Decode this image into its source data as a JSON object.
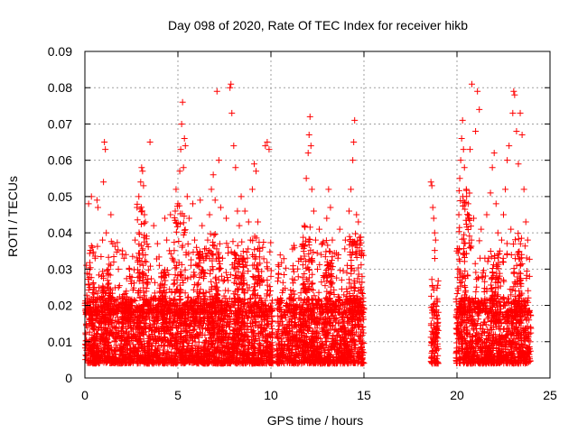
{
  "chart_data": {
    "type": "scatter",
    "title": "Day 098 of 2020, Rate Of TEC Index for receiver hikb",
    "xlabel": "GPS time / hours",
    "ylabel": "ROTI / TECUs",
    "xlim": [
      0,
      25
    ],
    "ylim": [
      0,
      0.09
    ],
    "xticks": [
      0,
      5,
      10,
      15,
      20,
      25
    ],
    "yticks": [
      0,
      0.01,
      0.02,
      0.03,
      0.04,
      0.05,
      0.06,
      0.07,
      0.08,
      0.09
    ],
    "xtick_labels": [
      "0",
      "5",
      "10",
      "15",
      "20",
      "25"
    ],
    "ytick_labels": [
      "0",
      "0.01",
      "0.02",
      "0.03",
      "0.04",
      "0.05",
      "0.06",
      "0.07",
      "0.08",
      "0.09"
    ],
    "grid": true,
    "marker": "+",
    "color": "#ff0000",
    "series": [
      {
        "points": [
          [
            0.05,
            0.012
          ],
          [
            0.1,
            0.009
          ],
          [
            0.15,
            0.02
          ],
          [
            0.2,
            0.048
          ],
          [
            0.25,
            0.03
          ],
          [
            0.3,
            0.015
          ],
          [
            0.35,
            0.05
          ],
          [
            0.4,
            0.036
          ],
          [
            0.45,
            0.011
          ],
          [
            0.5,
            0.025
          ],
          [
            0.55,
            0.033
          ],
          [
            0.6,
            0.008
          ],
          [
            0.65,
            0.049
          ],
          [
            0.7,
            0.047
          ],
          [
            0.75,
            0.014
          ],
          [
            0.8,
            0.022
          ],
          [
            0.85,
            0.01
          ],
          [
            0.9,
            0.028
          ],
          [
            0.95,
            0.038
          ],
          [
            1.0,
            0.054
          ],
          [
            1.05,
            0.065
          ],
          [
            1.1,
            0.063
          ],
          [
            1.15,
            0.04
          ],
          [
            1.2,
            0.013
          ],
          [
            1.3,
            0.016
          ],
          [
            1.4,
            0.045
          ],
          [
            1.5,
            0.037
          ],
          [
            1.6,
            0.01
          ],
          [
            1.7,
            0.012
          ],
          [
            1.8,
            0.03
          ],
          [
            1.9,
            0.011
          ],
          [
            2.0,
            0.022
          ],
          [
            2.1,
            0.033
          ],
          [
            2.2,
            0.034
          ],
          [
            2.3,
            0.009
          ],
          [
            2.4,
            0.028
          ],
          [
            2.5,
            0.026
          ],
          [
            2.6,
            0.012
          ],
          [
            2.7,
            0.038
          ],
          [
            2.8,
            0.047
          ],
          [
            2.9,
            0.05
          ],
          [
            3.0,
            0.054
          ],
          [
            3.05,
            0.058
          ],
          [
            3.1,
            0.057
          ],
          [
            3.15,
            0.053
          ],
          [
            3.2,
            0.045
          ],
          [
            3.25,
            0.043
          ],
          [
            3.3,
            0.032
          ],
          [
            3.4,
            0.02
          ],
          [
            3.5,
            0.065
          ],
          [
            3.6,
            0.013
          ],
          [
            3.7,
            0.042
          ],
          [
            3.8,
            0.019
          ],
          [
            3.9,
            0.037
          ],
          [
            4.0,
            0.031
          ],
          [
            4.1,
            0.009
          ],
          [
            4.2,
            0.022
          ],
          [
            4.3,
            0.044
          ],
          [
            4.4,
            0.038
          ],
          [
            4.5,
            0.014
          ],
          [
            4.6,
            0.045
          ],
          [
            4.7,
            0.033
          ],
          [
            4.8,
            0.027
          ],
          [
            4.9,
            0.052
          ],
          [
            5.0,
            0.048
          ],
          [
            5.1,
            0.057
          ],
          [
            5.15,
            0.063
          ],
          [
            5.2,
            0.07
          ],
          [
            5.25,
            0.076
          ],
          [
            5.3,
            0.058
          ],
          [
            5.35,
            0.066
          ],
          [
            5.4,
            0.064
          ],
          [
            5.5,
            0.05
          ],
          [
            5.6,
            0.044
          ],
          [
            5.7,
            0.031
          ],
          [
            5.8,
            0.048
          ],
          [
            5.9,
            0.038
          ],
          [
            6.0,
            0.036
          ],
          [
            6.1,
            0.02
          ],
          [
            6.2,
            0.049
          ],
          [
            6.3,
            0.042
          ],
          [
            6.4,
            0.028
          ],
          [
            6.5,
            0.033
          ],
          [
            6.6,
            0.038
          ],
          [
            6.7,
            0.045
          ],
          [
            6.8,
            0.052
          ],
          [
            6.9,
            0.056
          ],
          [
            7.0,
            0.049
          ],
          [
            7.1,
            0.079
          ],
          [
            7.2,
            0.06
          ],
          [
            7.3,
            0.047
          ],
          [
            7.4,
            0.033
          ],
          [
            7.5,
            0.027
          ],
          [
            7.6,
            0.044
          ],
          [
            7.7,
            0.036
          ],
          [
            7.8,
            0.08
          ],
          [
            7.85,
            0.081
          ],
          [
            7.9,
            0.073
          ],
          [
            8.0,
            0.064
          ],
          [
            8.1,
            0.058
          ],
          [
            8.2,
            0.046
          ],
          [
            8.3,
            0.042
          ],
          [
            8.4,
            0.05
          ],
          [
            8.5,
            0.033
          ],
          [
            8.6,
            0.046
          ],
          [
            8.7,
            0.031
          ],
          [
            8.8,
            0.043
          ],
          [
            8.9,
            0.038
          ],
          [
            9.0,
            0.052
          ],
          [
            9.1,
            0.059
          ],
          [
            9.2,
            0.057
          ],
          [
            9.3,
            0.043
          ],
          [
            9.4,
            0.035
          ],
          [
            9.5,
            0.014
          ],
          [
            9.6,
            0.027
          ],
          [
            9.7,
            0.064
          ],
          [
            9.8,
            0.065
          ],
          [
            9.9,
            0.063
          ],
          [
            10.0,
            0.028
          ],
          [
            10.1,
            0.004
          ],
          [
            10.3,
            0.012
          ],
          [
            10.4,
            0.006
          ],
          [
            10.6,
            0.009
          ],
          [
            10.8,
            0.02
          ],
          [
            11.0,
            0.013
          ],
          [
            11.2,
            0.024
          ],
          [
            11.4,
            0.011
          ],
          [
            11.6,
            0.033
          ],
          [
            11.8,
            0.042
          ],
          [
            11.9,
            0.055
          ],
          [
            12.0,
            0.062
          ],
          [
            12.05,
            0.067
          ],
          [
            12.1,
            0.072
          ],
          [
            12.15,
            0.064
          ],
          [
            12.2,
            0.052
          ],
          [
            12.3,
            0.046
          ],
          [
            12.4,
            0.038
          ],
          [
            12.5,
            0.03
          ],
          [
            12.6,
            0.041
          ],
          [
            12.7,
            0.034
          ],
          [
            12.8,
            0.019
          ],
          [
            12.9,
            0.028
          ],
          [
            13.0,
            0.044
          ],
          [
            13.1,
            0.052
          ],
          [
            13.2,
            0.047
          ],
          [
            13.3,
            0.038
          ],
          [
            13.4,
            0.023
          ],
          [
            13.5,
            0.02
          ],
          [
            13.6,
            0.033
          ],
          [
            13.7,
            0.041
          ],
          [
            13.8,
            0.027
          ],
          [
            13.9,
            0.018
          ],
          [
            14.0,
            0.038
          ],
          [
            14.1,
            0.031
          ],
          [
            14.2,
            0.046
          ],
          [
            14.3,
            0.052
          ],
          [
            14.4,
            0.06
          ],
          [
            14.45,
            0.065
          ],
          [
            14.5,
            0.071
          ],
          [
            14.6,
            0.045
          ],
          [
            14.7,
            0.043
          ],
          [
            14.8,
            0.038
          ],
          [
            14.9,
            0.028
          ],
          [
            14.95,
            0.021
          ],
          [
            18.6,
            0.054
          ],
          [
            18.65,
            0.053
          ],
          [
            18.7,
            0.047
          ],
          [
            18.75,
            0.044
          ],
          [
            18.8,
            0.04
          ],
          [
            18.85,
            0.038
          ],
          [
            18.9,
            0.017
          ],
          [
            18.95,
            0.015
          ],
          [
            18.7,
            0.012
          ],
          [
            18.8,
            0.01
          ],
          [
            18.9,
            0.008
          ],
          [
            20.0,
            0.012
          ],
          [
            20.05,
            0.03
          ],
          [
            20.1,
            0.045
          ],
          [
            20.15,
            0.055
          ],
          [
            20.2,
            0.06
          ],
          [
            20.25,
            0.066
          ],
          [
            20.3,
            0.071
          ],
          [
            20.35,
            0.063
          ],
          [
            20.4,
            0.058
          ],
          [
            20.5,
            0.052
          ],
          [
            20.6,
            0.048
          ],
          [
            20.7,
            0.063
          ],
          [
            20.8,
            0.081
          ],
          [
            20.9,
            0.044
          ],
          [
            21.0,
            0.068
          ],
          [
            21.1,
            0.079
          ],
          [
            21.2,
            0.074
          ],
          [
            21.3,
            0.041
          ],
          [
            21.4,
            0.029
          ],
          [
            21.5,
            0.033
          ],
          [
            21.6,
            0.045
          ],
          [
            21.7,
            0.033
          ],
          [
            21.8,
            0.051
          ],
          [
            21.9,
            0.058
          ],
          [
            22.0,
            0.062
          ],
          [
            22.1,
            0.048
          ],
          [
            22.2,
            0.04
          ],
          [
            22.3,
            0.035
          ],
          [
            22.4,
            0.038
          ],
          [
            22.5,
            0.045
          ],
          [
            22.6,
            0.052
          ],
          [
            22.7,
            0.06
          ],
          [
            22.8,
            0.064
          ],
          [
            22.9,
            0.041
          ],
          [
            23.0,
            0.073
          ],
          [
            23.05,
            0.079
          ],
          [
            23.1,
            0.078
          ],
          [
            23.2,
            0.068
          ],
          [
            23.3,
            0.059
          ],
          [
            23.4,
            0.073
          ],
          [
            23.5,
            0.067
          ],
          [
            23.6,
            0.052
          ],
          [
            23.7,
            0.043
          ],
          [
            23.8,
            0.038
          ],
          [
            23.9,
            0.028
          ],
          [
            23.95,
            0.014
          ]
        ]
      }
    ],
    "dense_band": {
      "segments": [
        [
          0,
          10.1
        ],
        [
          10.3,
          15.0
        ],
        [
          18.6,
          19.0
        ],
        [
          19.95,
          24.0
        ]
      ],
      "y_range": [
        0.004,
        0.022
      ],
      "spikes": [
        [
          0.2,
          0.5,
          0.028
        ],
        [
          0.9,
          1.4,
          0.03
        ],
        [
          2.0,
          2.5,
          0.022
        ],
        [
          2.8,
          3.4,
          0.048
        ],
        [
          4.0,
          4.4,
          0.03
        ],
        [
          4.8,
          5.4,
          0.048
        ],
        [
          5.8,
          6.4,
          0.035
        ],
        [
          6.7,
          7.3,
          0.04
        ],
        [
          8.0,
          8.6,
          0.035
        ],
        [
          9.0,
          9.4,
          0.04
        ],
        [
          11.7,
          12.3,
          0.042
        ],
        [
          12.9,
          13.3,
          0.035
        ],
        [
          14.2,
          14.9,
          0.04
        ],
        [
          20.1,
          20.8,
          0.052
        ],
        [
          21.8,
          22.3,
          0.035
        ],
        [
          23.0,
          23.5,
          0.04
        ]
      ]
    }
  }
}
